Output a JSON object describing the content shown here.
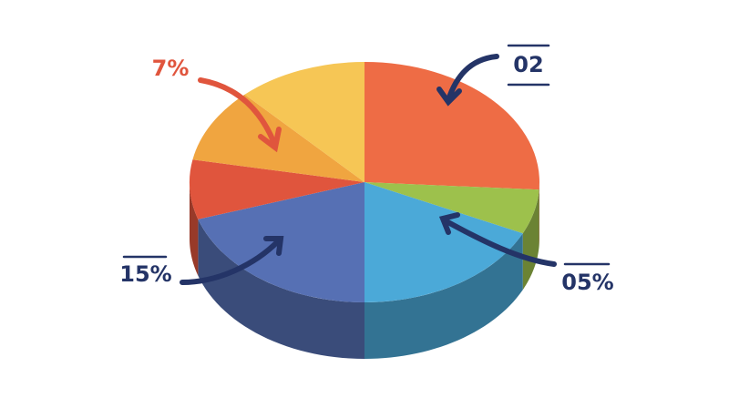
{
  "chart_data": {
    "type": "pie",
    "values": [
      26,
      6,
      18,
      20,
      8,
      10,
      12
    ],
    "colors": [
      "#ee6c45",
      "#9dc14c",
      "#4ba9d8",
      "#5670b4",
      "#e0553d",
      "#f0a540",
      "#f6c655"
    ],
    "annotations": [
      "7%",
      "02",
      "15%",
      "05%"
    ]
  }
}
